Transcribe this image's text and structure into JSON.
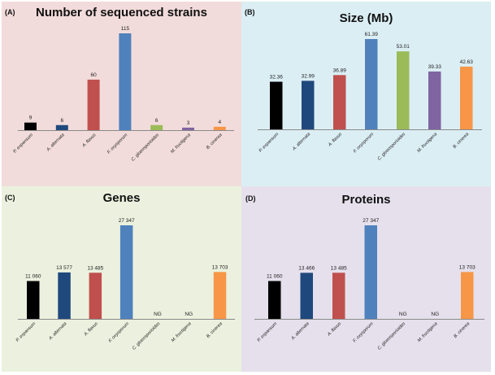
{
  "colors": {
    "panel_bg": [
      "#f2dcdb",
      "#dbeef4",
      "#ebf1de",
      "#e5e0ec"
    ],
    "bars": [
      "#000000",
      "#1f497d",
      "#c0504d",
      "#4f81bd",
      "#9bbb59",
      "#8064a2",
      "#f79646"
    ],
    "axis": "#8a8a8a"
  },
  "chart_data": [
    {
      "type": "bar",
      "panel_label": "(A)",
      "title": "Number of sequenced strains",
      "xlabel": "",
      "ylabel": "",
      "categories": [
        "P. expansum",
        "A. alternata",
        "A. flavus",
        "F. oxysporum",
        "C. gloeosporioides",
        "M. fructigena",
        "B. cinerea"
      ],
      "values": [
        9,
        6,
        60,
        115,
        6,
        3,
        4
      ],
      "data_labels": [
        "9",
        "6",
        "60",
        "115",
        "6",
        "3",
        "4"
      ],
      "ylim": [
        0,
        115
      ],
      "grid": false,
      "legend": "none"
    },
    {
      "type": "bar",
      "panel_label": "(B)",
      "title": "Size (Mb)",
      "xlabel": "",
      "ylabel": "",
      "categories": [
        "P. expansum",
        "A. alternata",
        "A. flavus",
        "F. oxysporum",
        "C. gloeosporioides",
        "M. fructigena",
        "B. cinerea"
      ],
      "values": [
        32.36,
        32.99,
        36.89,
        61.39,
        53.01,
        39.33,
        42.63
      ],
      "data_labels": [
        "32.36",
        "32.99",
        "36.89",
        "61.39",
        "53.01",
        "39.33",
        "42.63"
      ],
      "ylim": [
        0,
        61.39
      ],
      "grid": false,
      "legend": "none"
    },
    {
      "type": "bar",
      "panel_label": "(C)",
      "title": "Genes",
      "xlabel": "",
      "ylabel": "",
      "categories": [
        "P. expansum",
        "A. alternata",
        "A. flavus",
        "F. oxysporum",
        "C. gloeosporioides",
        "M. fructigena",
        "B. cinerea"
      ],
      "values": [
        11060,
        13577,
        13485,
        27347,
        null,
        null,
        13703
      ],
      "data_labels": [
        "11 060",
        "13 577",
        "13 485",
        "27 347",
        "NG",
        "NG",
        "13 703"
      ],
      "ylim": [
        0,
        27347
      ],
      "grid": false,
      "legend": "none"
    },
    {
      "type": "bar",
      "panel_label": "(D)",
      "title": "Proteins",
      "xlabel": "",
      "ylabel": "",
      "categories": [
        "P. expansum",
        "A. alternata",
        "A. flavus",
        "F. oxysporum",
        "C. gloeosporioides",
        "M. fructigena",
        "B. cinerea"
      ],
      "values": [
        11060,
        13466,
        13485,
        27347,
        null,
        null,
        13703
      ],
      "data_labels": [
        "11 060",
        "13 466",
        "13 485",
        "27 347",
        "NG",
        "NG",
        "13 703"
      ],
      "ylim": [
        0,
        27347
      ],
      "grid": false,
      "legend": "none"
    }
  ]
}
